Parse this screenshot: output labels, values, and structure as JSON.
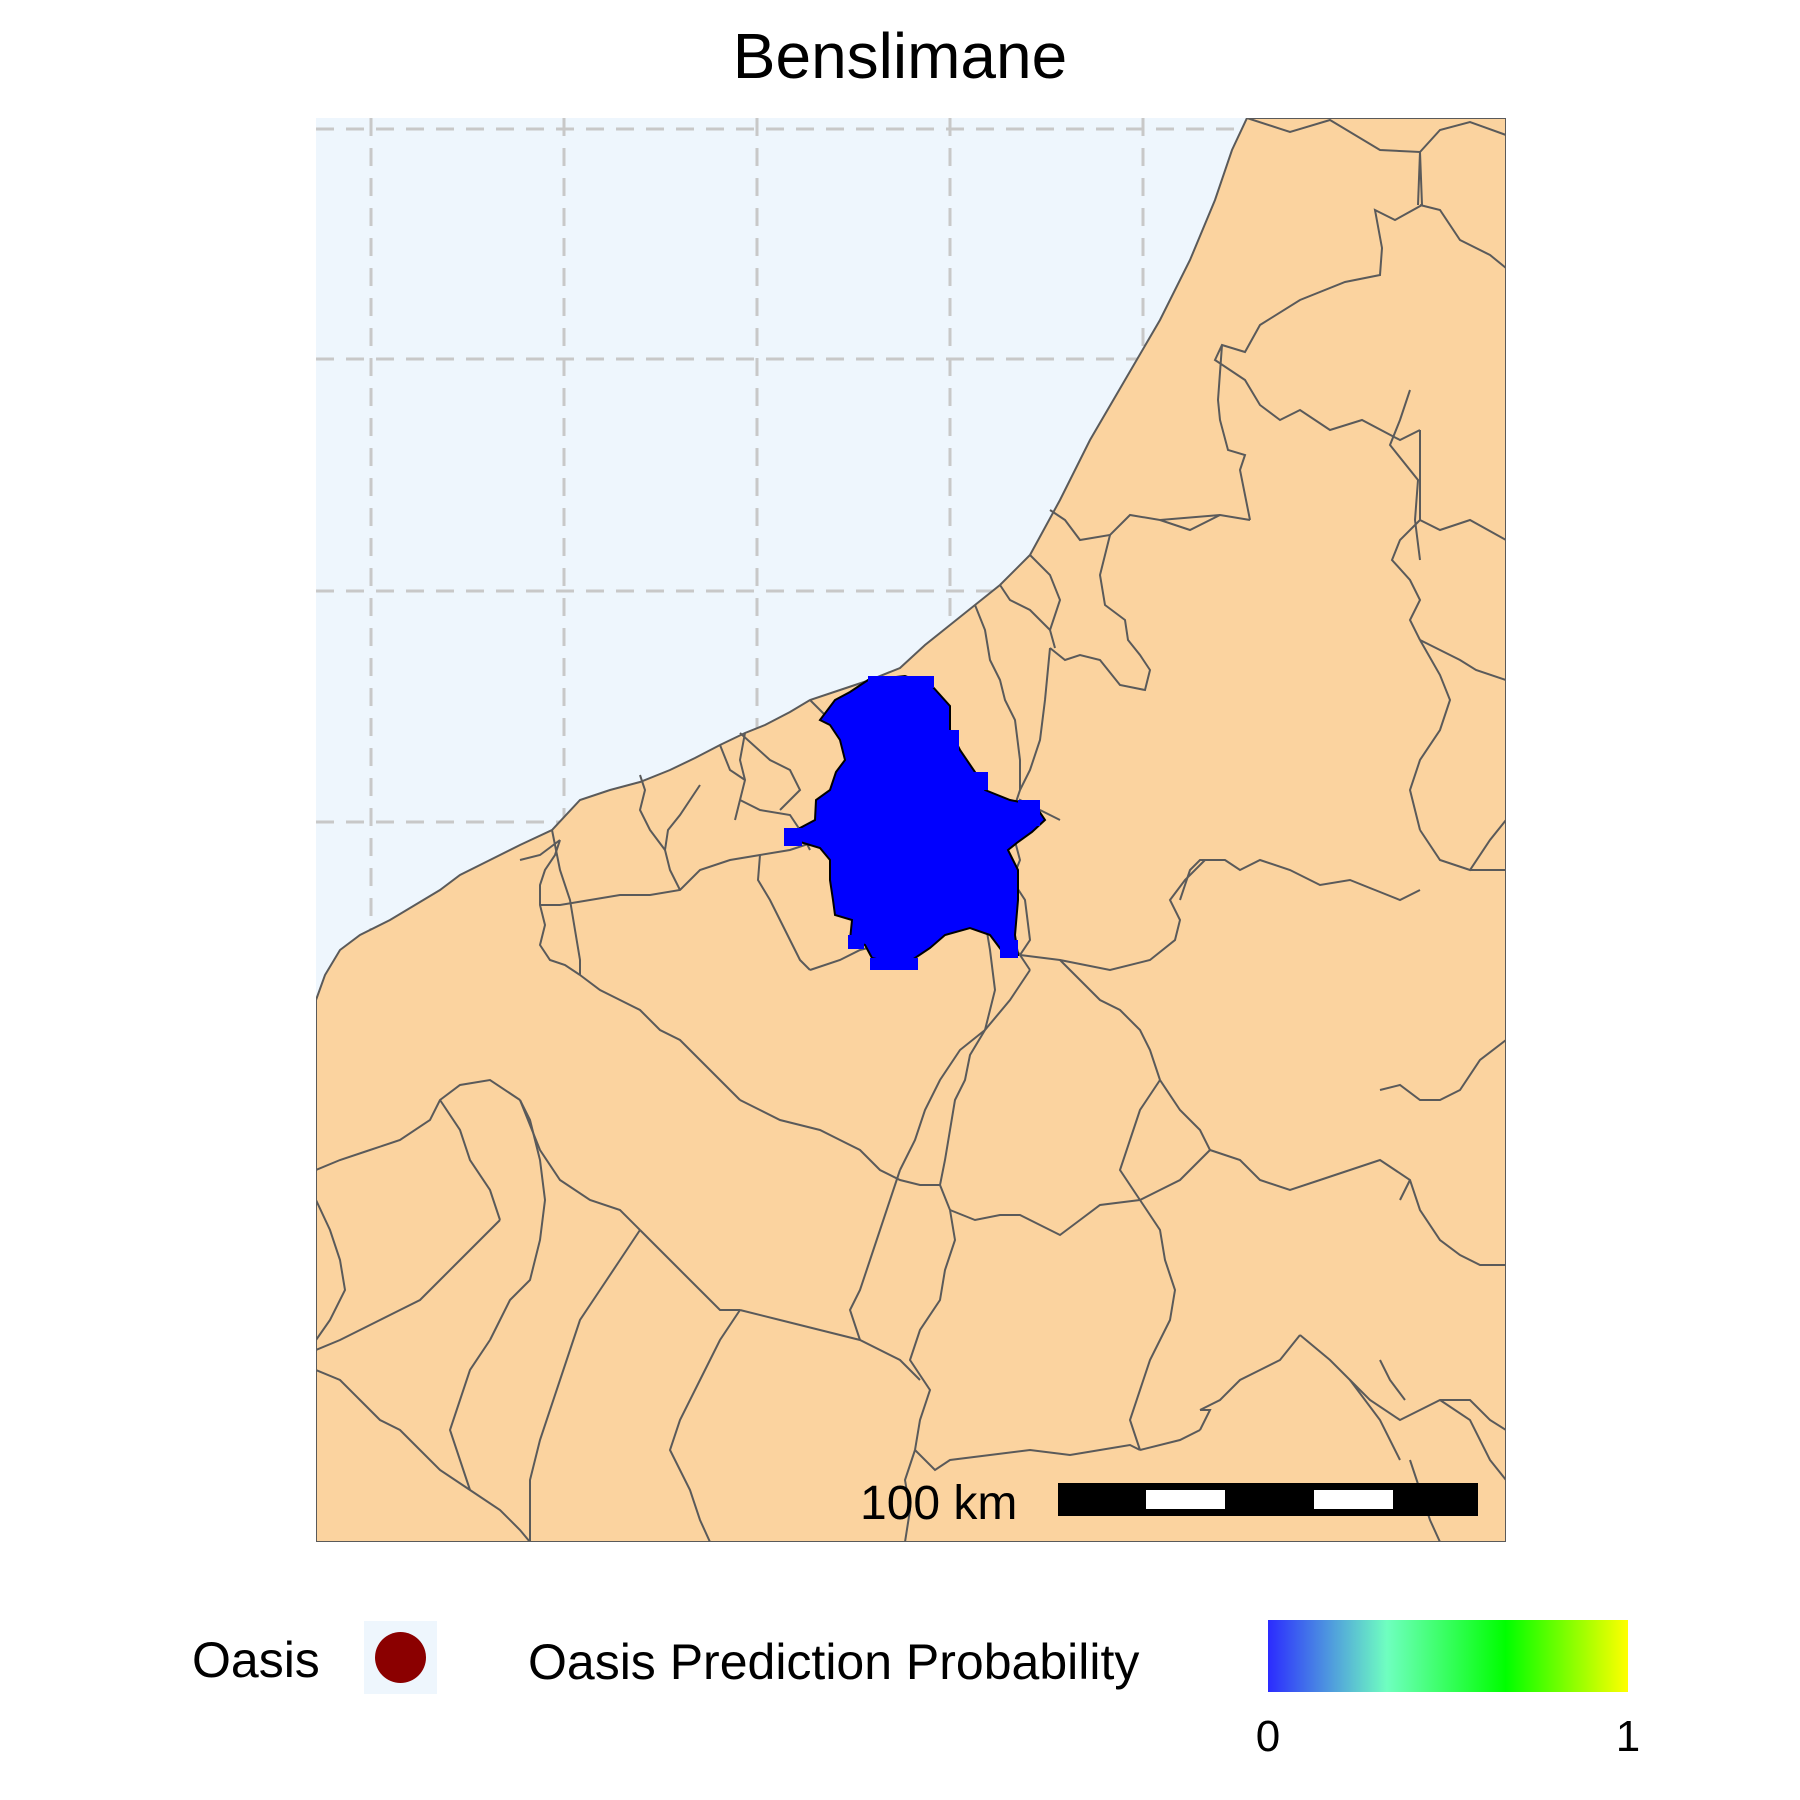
{
  "map": {
    "title": "Benslimane",
    "colors": {
      "sea": "#eef6fd",
      "land": "#fbd39f",
      "border": "#5a5a5a",
      "grid": "#c8c8c8",
      "highlight_region": "#0000ff"
    },
    "scale_bar": {
      "label": "100 km",
      "segments": 5
    }
  },
  "legend": {
    "oasis": {
      "label": "Oasis",
      "color": "#8b0000",
      "symbol": "circle"
    },
    "probability": {
      "label": "Oasis Prediction Probability",
      "min_label": "0",
      "max_label": "1",
      "gradient": [
        "#0000ff",
        "#6fffc0",
        "#00ff00",
        "#ffff00"
      ]
    }
  }
}
